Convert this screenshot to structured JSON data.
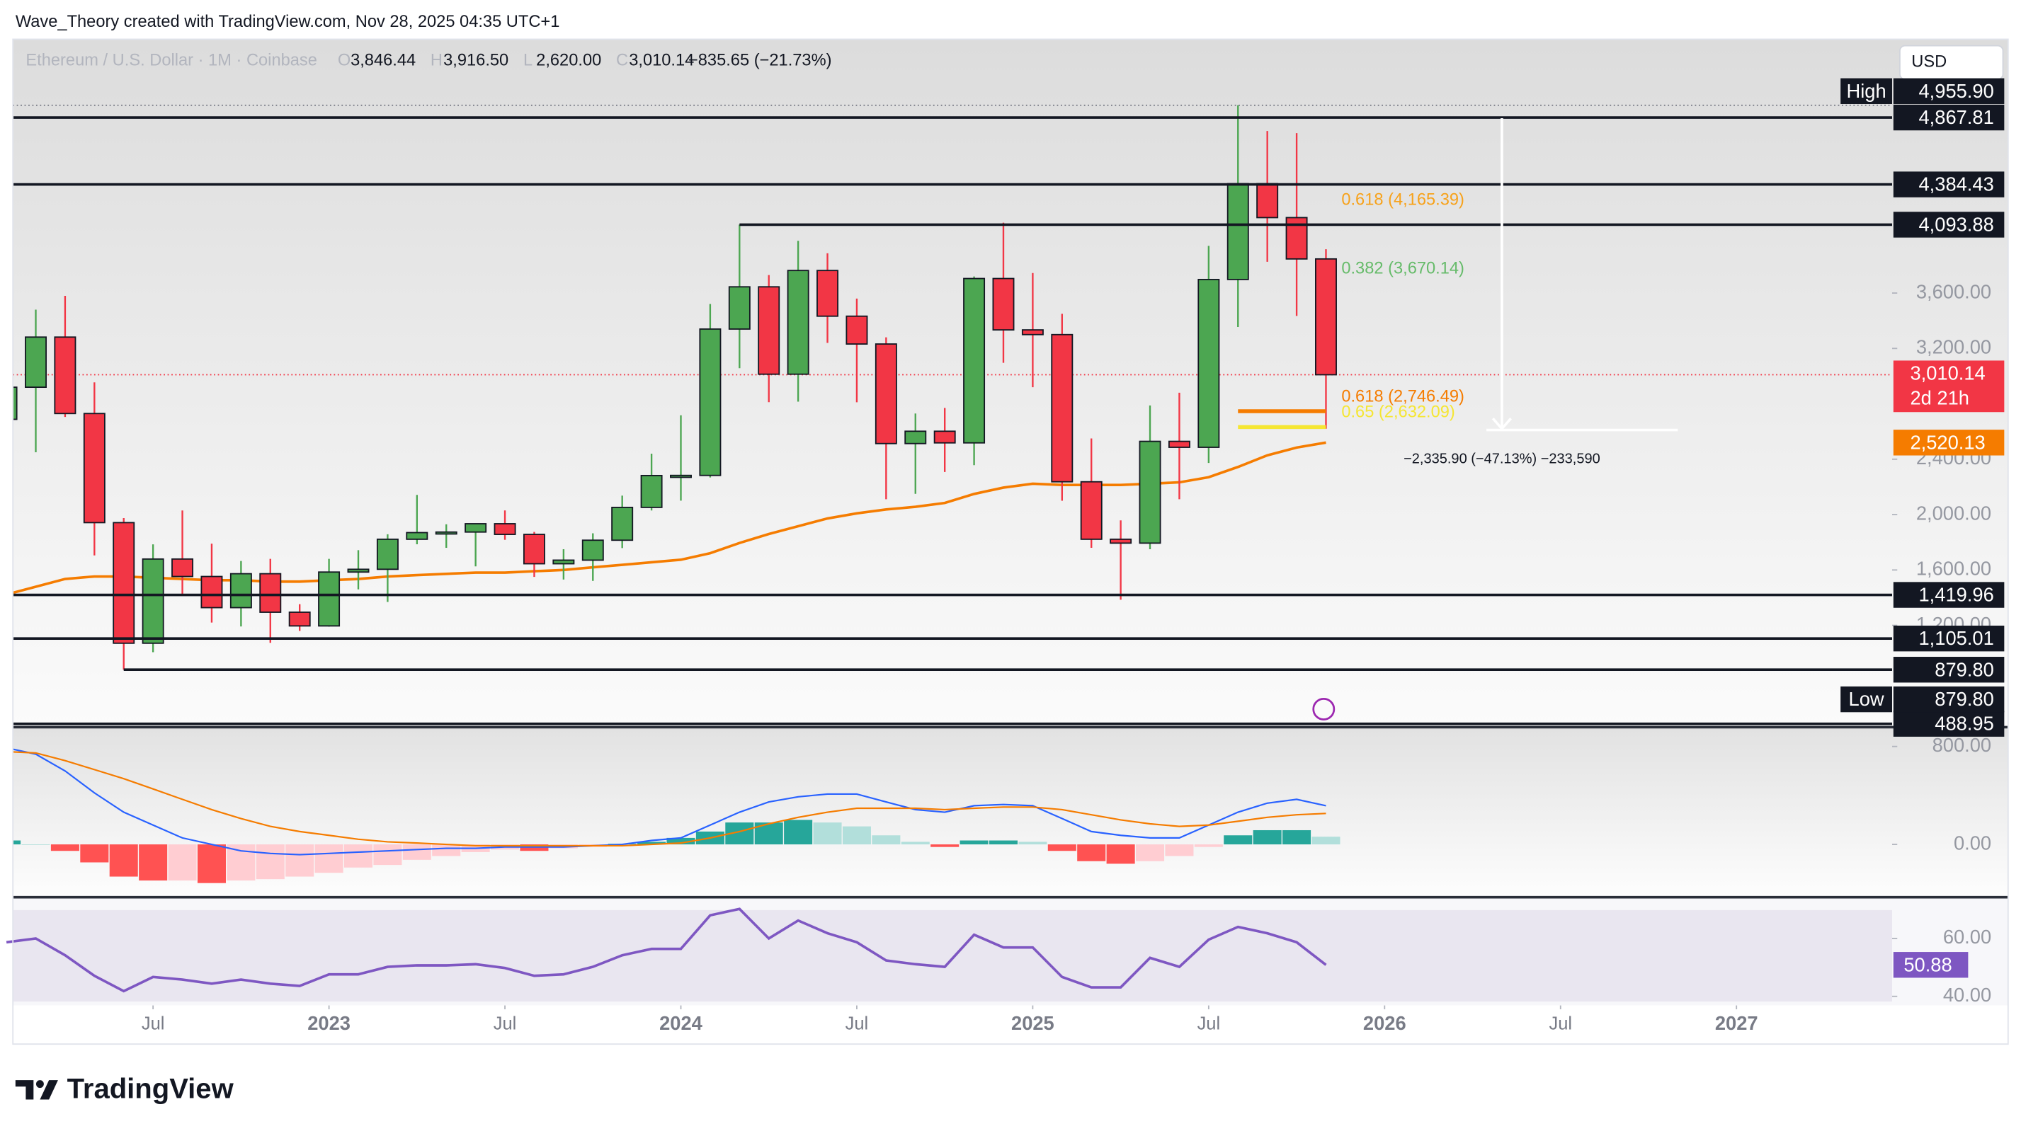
{
  "header": {
    "credit": "Wave_Theory created with TradingView.com, Nov 28, 2025 04:35 UTC+1"
  },
  "toolbar": {
    "currency": "USD"
  },
  "footer": {
    "brand": "TradingView"
  },
  "chart_data": {
    "type": "candlestick",
    "symbol": "Ethereum / U.S. Dollar · 1M · Coinbase",
    "ohlc_legend": [
      {
        "key": "O",
        "value": 3846.44,
        "label": "3,846.44"
      },
      {
        "key": "H",
        "value": 3916.5,
        "label": "3,916.50"
      },
      {
        "key": "L",
        "value": 2620,
        "label": "2,620.00"
      },
      {
        "key": "C",
        "value": 3010.14,
        "label": "3,010.14"
      }
    ],
    "change_label": "−835.65 (−21.73%)",
    "up_color": "#4ca651",
    "down_color": "#f23645",
    "x": [
      "2022-02",
      "2022-03",
      "2022-04",
      "2022-05",
      "2022-06",
      "2022-07",
      "2022-08",
      "2022-09",
      "2022-10",
      "2022-11",
      "2022-12",
      "2023-01",
      "2023-02",
      "2023-03",
      "2023-04",
      "2023-05",
      "2023-06",
      "2023-07",
      "2023-08",
      "2023-09",
      "2023-10",
      "2023-11",
      "2023-12",
      "2024-01",
      "2024-02",
      "2024-03",
      "2024-04",
      "2024-05",
      "2024-06",
      "2024-07",
      "2024-08",
      "2024-09",
      "2024-10",
      "2024-11",
      "2024-12",
      "2025-01",
      "2025-02",
      "2025-03",
      "2025-04",
      "2025-05",
      "2025-06",
      "2025-07",
      "2025-08",
      "2025-09",
      "2025-10",
      "2025-11"
    ],
    "open": [
      2688,
      2920,
      3282,
      2730,
      1942,
      1071,
      1679,
      1553,
      1328,
      1573,
      1295,
      1196,
      1585,
      1605,
      1822,
      1870,
      1874,
      1934,
      1857,
      1645,
      1671,
      1815,
      2052,
      2282,
      2283,
      3340,
      3645,
      3014,
      3763,
      3433,
      3232,
      2513,
      2602,
      2518,
      3705,
      3334,
      3300,
      2237,
      1822,
      1794,
      2529,
      2486,
      3698,
      4390,
      4145,
      3846.44
    ],
    "high": [
      3283,
      3480,
      3580,
      2955,
      1975,
      1785,
      2030,
      1790,
      1665,
      1680,
      1353,
      1680,
      1743,
      1858,
      2142,
      1930,
      1929,
      2030,
      1875,
      1750,
      1865,
      2137,
      2440,
      2717,
      3521,
      4094,
      3730,
      3977,
      3887,
      3560,
      3280,
      2730,
      2770,
      3720,
      4108,
      3745,
      3450,
      2550,
      1958,
      2788,
      2880,
      3941,
      4955.9,
      4770,
      4755,
      3916.5
    ],
    "low": [
      2300,
      2450,
      2705,
      1705,
      879.8,
      1006,
      1422,
      1220,
      1192,
      1074,
      1160,
      1191,
      1460,
      1369,
      1786,
      1760,
      1626,
      1818,
      1550,
      1531,
      1521,
      1758,
      2030,
      2101,
      2268,
      3057,
      2812,
      2816,
      3240,
      2811,
      2111,
      2150,
      2308,
      2357,
      3096,
      2920,
      2100,
      1760,
      1385,
      1750,
      2111,
      2373,
      3355,
      3826,
      3435,
      2620
    ],
    "close": [
      2920,
      3282,
      2730,
      1942,
      1071,
      1679,
      1553,
      1328,
      1573,
      1295,
      1196,
      1585,
      1605,
      1822,
      1870,
      1874,
      1934,
      1857,
      1645,
      1671,
      1815,
      2052,
      2282,
      2283,
      3340,
      3645,
      3014,
      3763,
      3433,
      3232,
      2513,
      2602,
      2518,
      3705,
      3334,
      3300,
      2237,
      1822,
      1794,
      2529,
      2486,
      3698,
      4390,
      4145,
      3846.44,
      3010.14
    ],
    "xlim": [
      "2022-02",
      "2027-06"
    ],
    "xticks": [
      {
        "value": "2022-07",
        "label": "Jul"
      },
      {
        "value": "2023-01",
        "label": "2023"
      },
      {
        "value": "2023-07",
        "label": "Jul"
      },
      {
        "value": "2024-01",
        "label": "2024"
      },
      {
        "value": "2024-07",
        "label": "Jul"
      },
      {
        "value": "2025-01",
        "label": "2025"
      },
      {
        "value": "2025-07",
        "label": "Jul"
      },
      {
        "value": "2026-01",
        "label": "2026"
      },
      {
        "value": "2026-07",
        "label": "Jul"
      },
      {
        "value": "2027-01",
        "label": "2027"
      }
    ],
    "ylim": [
      474,
      5433
    ],
    "yticks": [
      {
        "value": 3600,
        "label": "3,600.00"
      },
      {
        "value": 3200,
        "label": "3,200.00"
      },
      {
        "value": 2400,
        "label": "2,400.00"
      },
      {
        "value": 2000,
        "label": "2,000.00"
      },
      {
        "value": 1600,
        "label": "1,600.00"
      },
      {
        "value": 1200,
        "label": "1,200.00"
      }
    ],
    "last_price": {
      "value": 3010.14,
      "label": "3,010.14",
      "countdown": "2d 21h",
      "color": "#f23645"
    },
    "levels": [
      {
        "value": 4867.81,
        "label": "4,867.81"
      },
      {
        "value": 4384.43,
        "label": "4,384.43"
      },
      {
        "value": 4093.88,
        "label": "4,093.88",
        "start": "2024-03"
      },
      {
        "value": 1419.96,
        "label": "1,419.96"
      },
      {
        "value": 1105.01,
        "label": "1,105.01"
      },
      {
        "value": 879.8,
        "label": "879.80",
        "start": "2022-06"
      },
      {
        "value": 488.95,
        "label": "488.95"
      }
    ],
    "extremes": [
      {
        "tag": "High",
        "value": 4955.9,
        "label": "4,955.90"
      },
      {
        "tag": "Low",
        "value": 879.8,
        "label": "879.80"
      }
    ],
    "fibs": [
      {
        "value": 4165.39,
        "label": "0.618 (4,165.39)",
        "color": "#f7a21b"
      },
      {
        "value": 3670.14,
        "label": "0.382 (3,670.14)",
        "color": "#66bb6a"
      },
      {
        "value": 2746.49,
        "label": "0.618 (2,746.49)",
        "color": "#f57c00",
        "start": "2025-08"
      },
      {
        "value": 2632.09,
        "label": "0.65 (2,632.09)",
        "color": "#f5e633",
        "start": "2025-08"
      }
    ],
    "measure": {
      "from": 4955.9,
      "to": 2620,
      "x": "2026-05",
      "x_end": "2026-11",
      "text": "−2,335.90 (−47.13%) −233,590"
    },
    "ma": {
      "color": "#f57c00",
      "label": "2,520.13",
      "values": [
        1423,
        1479,
        1535,
        1553,
        1553,
        1544,
        1535,
        1526,
        1526,
        1516,
        1516,
        1526,
        1535,
        1553,
        1563,
        1572,
        1581,
        1581,
        1591,
        1600,
        1619,
        1637,
        1656,
        1674,
        1721,
        1795,
        1860,
        1916,
        1972,
        2009,
        2037,
        2056,
        2084,
        2149,
        2195,
        2223,
        2214,
        2214,
        2214,
        2223,
        2233,
        2270,
        2344,
        2428,
        2484,
        2520.13
      ]
    },
    "macd": {
      "ylim": [
        -421,
        947
      ],
      "yticks": [
        {
          "value": 800,
          "label": "800.00"
        },
        {
          "value": 0,
          "label": "0.00"
        }
      ],
      "macd_color": "#2962ff",
      "signal_color": "#f57c00",
      "hist_colors": {
        "up_rising": "#26a69a",
        "up_falling": "#b2dfdb",
        "down_falling": "#ff5252",
        "down_rising": "#ffcdd2"
      },
      "histogram": [
        32,
        0,
        -53,
        -147,
        -263,
        -295,
        -295,
        -316,
        -295,
        -284,
        -263,
        -232,
        -189,
        -168,
        -126,
        -95,
        -63,
        -42,
        -53,
        -32,
        -21,
        5,
        21,
        53,
        105,
        179,
        179,
        200,
        179,
        147,
        74,
        21,
        -21,
        32,
        32,
        21,
        -53,
        -137,
        -158,
        -137,
        -95,
        -21,
        74,
        116,
        116,
        63
      ],
      "macd": [
        789,
        737,
        600,
        421,
        263,
        158,
        53,
        0,
        -53,
        -74,
        -84,
        -74,
        -63,
        -53,
        -42,
        -32,
        -32,
        -21,
        -21,
        -21,
        -11,
        0,
        32,
        53,
        158,
        263,
        347,
        389,
        411,
        411,
        347,
        284,
        263,
        316,
        326,
        316,
        211,
        105,
        74,
        53,
        53,
        158,
        263,
        337,
        368,
        316
      ],
      "signal": [
        758,
        747,
        684,
        611,
        537,
        453,
        368,
        284,
        211,
        147,
        105,
        74,
        42,
        21,
        11,
        0,
        -11,
        -11,
        -11,
        -11,
        -11,
        -11,
        0,
        11,
        53,
        105,
        168,
        221,
        263,
        295,
        295,
        295,
        284,
        295,
        305,
        305,
        284,
        242,
        200,
        168,
        147,
        158,
        189,
        221,
        242,
        253
      ]
    },
    "rsi": {
      "ylim": [
        38.2,
        69.8
      ],
      "yticks": [
        {
          "value": 60,
          "label": "60.00"
        },
        {
          "value": 40,
          "label": "40.00"
        }
      ],
      "color": "#7e57c2",
      "last_label": "50.88",
      "values": [
        58.7,
        60,
        54.2,
        47.1,
        41.8,
        46.7,
        45.8,
        44.4,
        45.8,
        44.4,
        43.6,
        47.6,
        47.6,
        50.2,
        50.7,
        50.7,
        51.1,
        49.8,
        47.1,
        47.6,
        50.2,
        54.2,
        56.4,
        56.4,
        68,
        70.2,
        60,
        66.2,
        61.8,
        58.7,
        52.4,
        51.1,
        50.2,
        61.3,
        56.9,
        56.9,
        46.7,
        43.1,
        43.1,
        53.3,
        50.2,
        59.6,
        64,
        61.8,
        58.7,
        50.88
      ]
    }
  }
}
